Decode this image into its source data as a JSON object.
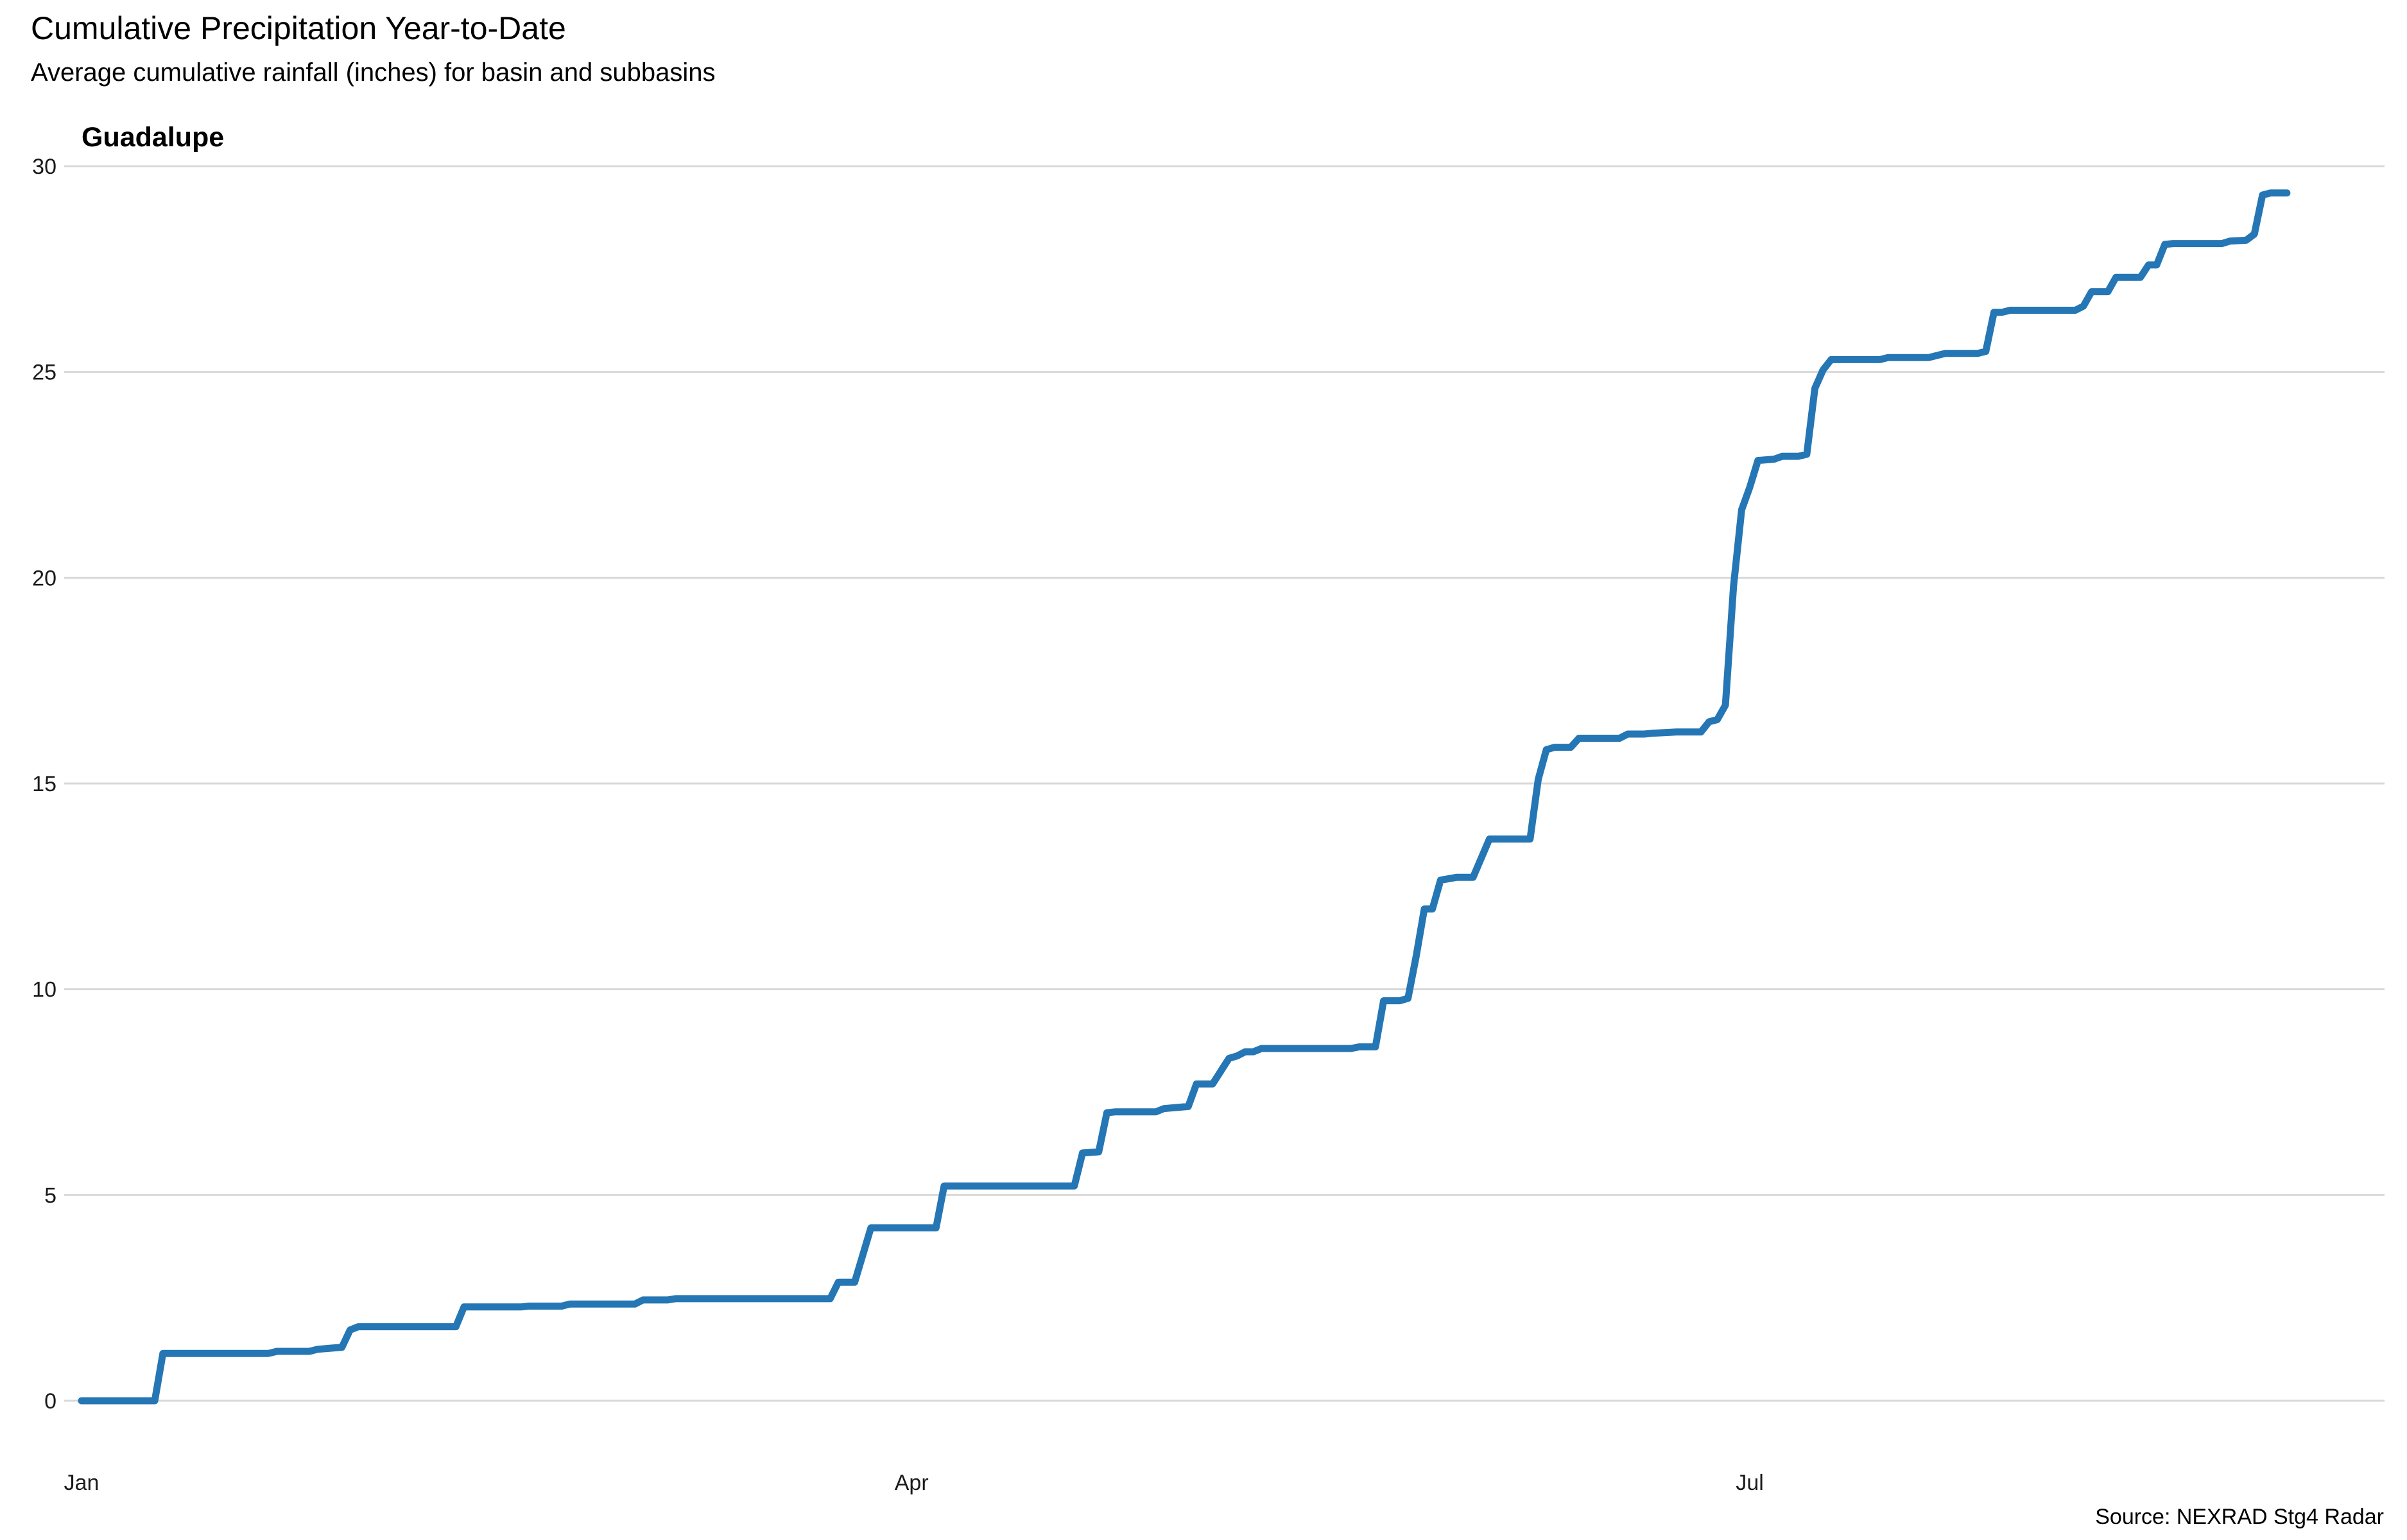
{
  "chart_data": {
    "type": "line",
    "title": "Cumulative Precipitation Year-to-Date",
    "subtitle": "Average cumulative rainfall (inches) for basin and subbasins",
    "facet": "Guadalupe",
    "caption": "Source: NEXRAD Stg4 Radar",
    "xlabel": "",
    "ylabel": "",
    "x_axis": {
      "type": "day-of-year",
      "range": [
        1,
        281
      ],
      "ticks": [
        {
          "day": 1,
          "label": "Jan"
        },
        {
          "day": 103,
          "label": "Apr"
        },
        {
          "day": 206,
          "label": "Jul"
        }
      ]
    },
    "y_axis": {
      "range": [
        0,
        30
      ],
      "ticks": [
        0,
        5,
        10,
        15,
        20,
        25,
        30
      ]
    },
    "grid": "horizontal",
    "legend": "none",
    "line_color": "#2576b4",
    "grid_color": "#d9d9d9",
    "series": [
      {
        "points": [
          [
            1,
            0
          ],
          [
            10,
            0
          ],
          [
            11,
            1.15
          ],
          [
            12,
            1.15
          ],
          [
            24,
            1.15
          ],
          [
            25,
            1.2
          ],
          [
            29,
            1.2
          ],
          [
            30,
            1.25
          ],
          [
            33,
            1.3
          ],
          [
            34,
            1.72
          ],
          [
            35,
            1.8
          ],
          [
            47,
            1.8
          ],
          [
            48,
            2.28
          ],
          [
            55,
            2.28
          ],
          [
            56,
            2.3
          ],
          [
            60,
            2.3
          ],
          [
            61,
            2.35
          ],
          [
            69,
            2.35
          ],
          [
            70,
            2.45
          ],
          [
            73,
            2.45
          ],
          [
            74,
            2.48
          ],
          [
            93,
            2.48
          ],
          [
            94,
            2.88
          ],
          [
            96,
            2.88
          ],
          [
            98,
            4.2
          ],
          [
            106,
            4.2
          ],
          [
            107,
            5.22
          ],
          [
            123,
            5.22
          ],
          [
            124,
            6.02
          ],
          [
            126,
            6.05
          ],
          [
            127,
            7.0
          ],
          [
            128,
            7.02
          ],
          [
            133,
            7.02
          ],
          [
            134,
            7.1
          ],
          [
            137,
            7.15
          ],
          [
            138,
            7.7
          ],
          [
            140,
            7.7
          ],
          [
            142,
            8.32
          ],
          [
            143,
            8.38
          ],
          [
            144,
            8.48
          ],
          [
            145,
            8.48
          ],
          [
            146,
            8.56
          ],
          [
            157,
            8.56
          ],
          [
            158,
            8.6
          ],
          [
            160,
            8.6
          ],
          [
            161,
            9.72
          ],
          [
            163,
            9.72
          ],
          [
            164,
            9.78
          ],
          [
            165,
            10.8
          ],
          [
            166,
            11.95
          ],
          [
            167,
            11.95
          ],
          [
            168,
            12.65
          ],
          [
            170,
            12.72
          ],
          [
            172,
            12.72
          ],
          [
            174,
            13.65
          ],
          [
            179,
            13.65
          ],
          [
            180,
            15.1
          ],
          [
            181,
            15.82
          ],
          [
            182,
            15.88
          ],
          [
            184,
            15.88
          ],
          [
            185,
            16.1
          ],
          [
            190,
            16.1
          ],
          [
            191,
            16.2
          ],
          [
            193,
            16.2
          ],
          [
            194,
            16.22
          ],
          [
            197,
            16.25
          ],
          [
            200,
            16.25
          ],
          [
            201,
            16.5
          ],
          [
            202,
            16.55
          ],
          [
            203,
            16.9
          ],
          [
            204,
            19.8
          ],
          [
            205,
            21.65
          ],
          [
            206,
            22.2
          ],
          [
            207,
            22.85
          ],
          [
            209,
            22.88
          ],
          [
            210,
            22.95
          ],
          [
            212,
            22.95
          ],
          [
            213,
            23.0
          ],
          [
            214,
            24.6
          ],
          [
            215,
            25.05
          ],
          [
            216,
            25.3
          ],
          [
            222,
            25.3
          ],
          [
            223,
            25.35
          ],
          [
            228,
            25.35
          ],
          [
            230,
            25.45
          ],
          [
            234,
            25.45
          ],
          [
            235,
            25.5
          ],
          [
            236,
            26.45
          ],
          [
            237,
            26.45
          ],
          [
            238,
            26.5
          ],
          [
            246,
            26.5
          ],
          [
            247,
            26.6
          ],
          [
            248,
            26.95
          ],
          [
            250,
            26.95
          ],
          [
            251,
            27.3
          ],
          [
            254,
            27.3
          ],
          [
            255,
            27.6
          ],
          [
            256,
            27.6
          ],
          [
            257,
            28.1
          ],
          [
            258,
            28.12
          ],
          [
            264,
            28.12
          ],
          [
            265,
            28.18
          ],
          [
            267,
            28.2
          ],
          [
            268,
            28.35
          ],
          [
            269,
            29.3
          ],
          [
            270,
            29.35
          ],
          [
            272,
            29.35
          ]
        ]
      }
    ]
  }
}
